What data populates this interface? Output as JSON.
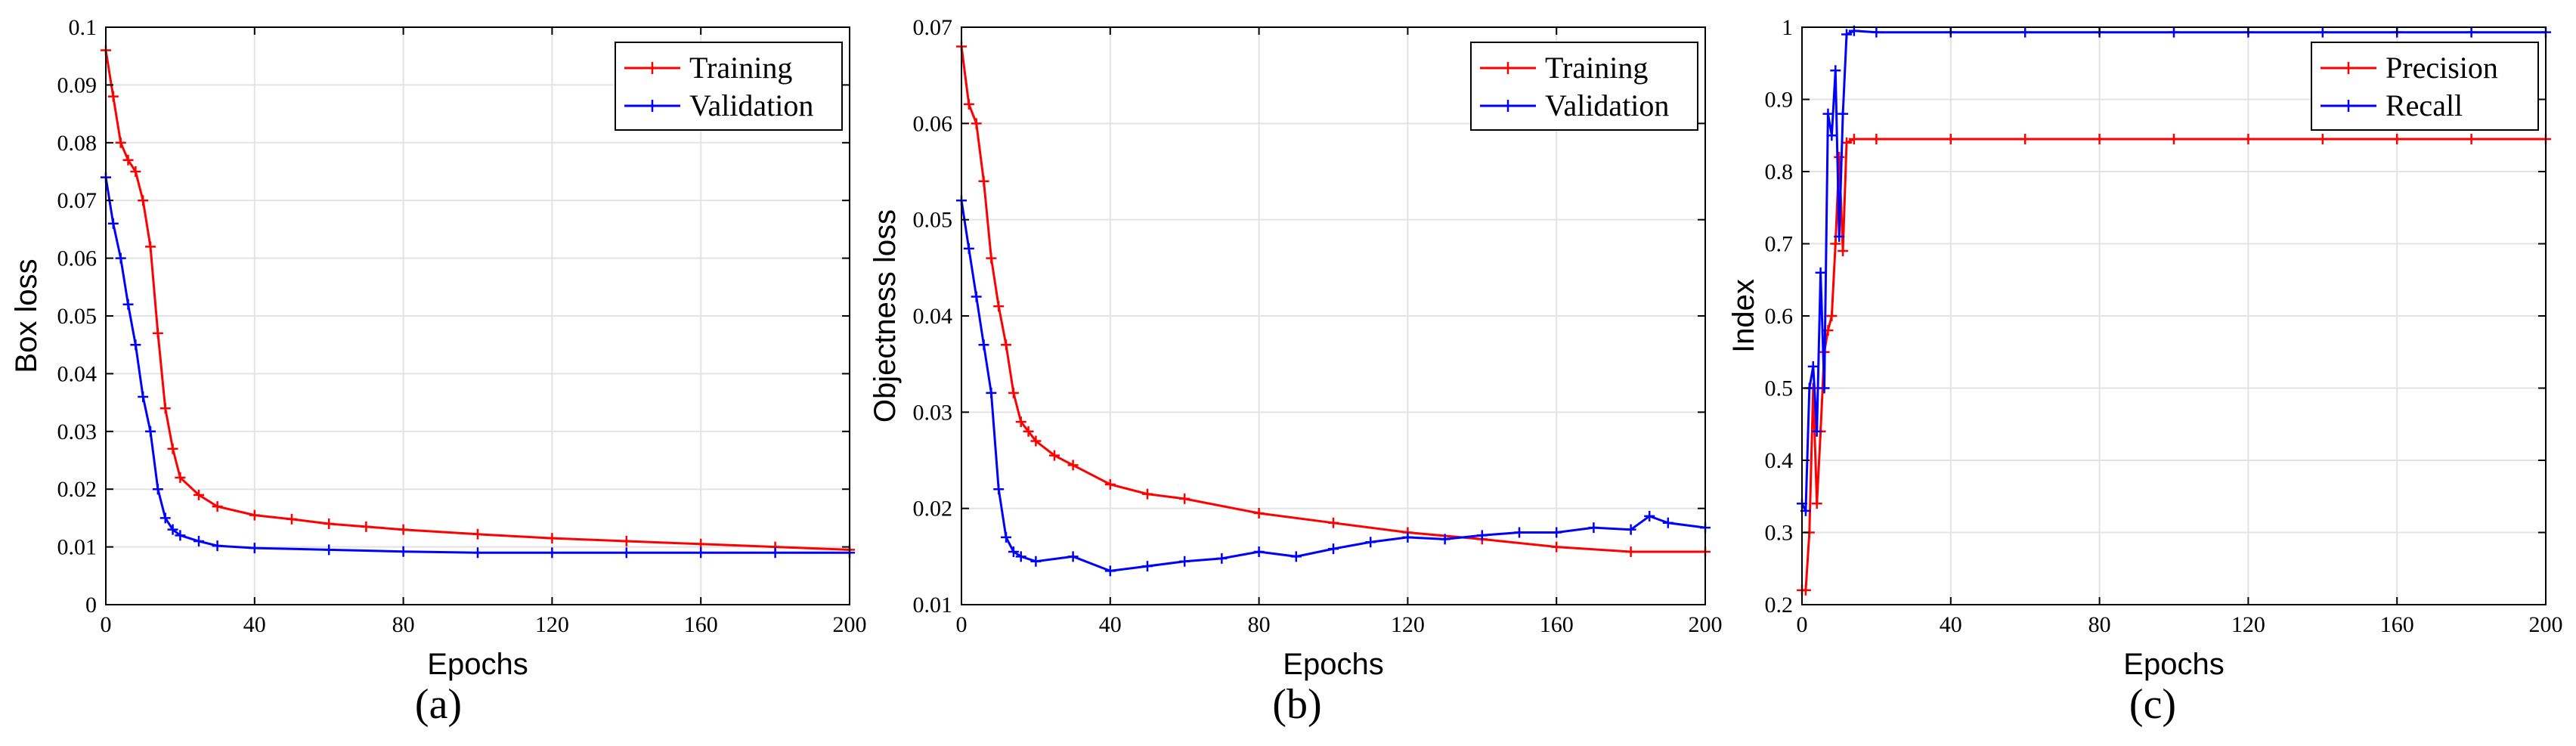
{
  "chart_data": [
    {
      "type": "line",
      "panel_label": "(a)",
      "xlabel": "Epochs",
      "ylabel": "Box loss",
      "xlim": [
        0,
        200
      ],
      "ylim": [
        0,
        0.1
      ],
      "xticks": [
        0,
        40,
        80,
        120,
        160,
        200
      ],
      "xtick_labels": [
        "0",
        "40",
        "80",
        "120",
        "160",
        "200"
      ],
      "yticks": [
        0,
        0.01,
        0.02,
        0.03,
        0.04,
        0.05,
        0.06,
        0.07,
        0.08,
        0.09,
        0.1
      ],
      "ytick_labels": [
        "0",
        "0.01",
        "0.02",
        "0.03",
        "0.04",
        "0.05",
        "0.06",
        "0.07",
        "0.08",
        "0.09",
        "0.1"
      ],
      "grid": true,
      "legend_position": "top-right",
      "series": [
        {
          "name": "Training",
          "color": "#ff0000",
          "x": [
            0,
            2,
            4,
            6,
            8,
            10,
            12,
            14,
            16,
            18,
            20,
            25,
            30,
            40,
            50,
            60,
            70,
            80,
            100,
            120,
            140,
            160,
            180,
            200
          ],
          "values": [
            0.096,
            0.088,
            0.08,
            0.077,
            0.075,
            0.07,
            0.062,
            0.047,
            0.034,
            0.027,
            0.022,
            0.019,
            0.017,
            0.0155,
            0.0148,
            0.014,
            0.0135,
            0.013,
            0.0122,
            0.0115,
            0.011,
            0.0105,
            0.01,
            0.0095
          ]
        },
        {
          "name": "Validation",
          "color": "#0000ff",
          "x": [
            0,
            2,
            4,
            6,
            8,
            10,
            12,
            14,
            16,
            18,
            20,
            25,
            30,
            40,
            60,
            80,
            100,
            120,
            140,
            160,
            180,
            200
          ],
          "values": [
            0.074,
            0.066,
            0.06,
            0.052,
            0.045,
            0.036,
            0.03,
            0.02,
            0.015,
            0.013,
            0.012,
            0.011,
            0.0102,
            0.0098,
            0.0095,
            0.0092,
            0.009,
            0.009,
            0.009,
            0.009,
            0.009,
            0.009
          ]
        }
      ]
    },
    {
      "type": "line",
      "panel_label": "(b)",
      "xlabel": "Epochs",
      "ylabel": "Objectness loss",
      "xlim": [
        0,
        200
      ],
      "ylim": [
        0.01,
        0.07
      ],
      "xticks": [
        0,
        40,
        80,
        120,
        160,
        200
      ],
      "xtick_labels": [
        "0",
        "40",
        "80",
        "120",
        "160",
        "200"
      ],
      "yticks": [
        0.01,
        0.02,
        0.03,
        0.04,
        0.05,
        0.06,
        0.07
      ],
      "ytick_labels": [
        "0.01",
        "0.02",
        "0.03",
        "0.04",
        "0.05",
        "0.06",
        "0.07"
      ],
      "grid": true,
      "legend_position": "top-right",
      "series": [
        {
          "name": "Training",
          "color": "#ff0000",
          "x": [
            0,
            2,
            4,
            6,
            8,
            10,
            12,
            14,
            16,
            18,
            20,
            25,
            30,
            40,
            50,
            60,
            80,
            100,
            120,
            140,
            160,
            180,
            200
          ],
          "values": [
            0.068,
            0.062,
            0.06,
            0.054,
            0.046,
            0.041,
            0.037,
            0.032,
            0.029,
            0.028,
            0.027,
            0.0255,
            0.0245,
            0.0225,
            0.0215,
            0.021,
            0.0195,
            0.0185,
            0.0175,
            0.0168,
            0.016,
            0.0155,
            0.0155
          ]
        },
        {
          "name": "Validation",
          "color": "#0000ff",
          "x": [
            0,
            2,
            4,
            6,
            8,
            10,
            12,
            14,
            16,
            20,
            30,
            40,
            50,
            60,
            70,
            80,
            90,
            100,
            110,
            120,
            130,
            140,
            150,
            160,
            170,
            180,
            185,
            190,
            200
          ],
          "values": [
            0.052,
            0.047,
            0.042,
            0.037,
            0.032,
            0.022,
            0.017,
            0.0155,
            0.015,
            0.0145,
            0.015,
            0.0135,
            0.014,
            0.0145,
            0.0148,
            0.0155,
            0.015,
            0.0158,
            0.0165,
            0.017,
            0.0168,
            0.0172,
            0.0175,
            0.0175,
            0.018,
            0.0178,
            0.0192,
            0.0185,
            0.018
          ]
        }
      ]
    },
    {
      "type": "line",
      "panel_label": "(c)",
      "xlabel": "Epochs",
      "ylabel": "Index",
      "xlim": [
        0,
        200
      ],
      "ylim": [
        0.2,
        1.0
      ],
      "xticks": [
        0,
        40,
        80,
        120,
        160,
        200
      ],
      "xtick_labels": [
        "0",
        "40",
        "80",
        "120",
        "160",
        "200"
      ],
      "yticks": [
        0.2,
        0.3,
        0.4,
        0.5,
        0.6,
        0.7,
        0.8,
        0.9,
        1.0
      ],
      "ytick_labels": [
        "0.2",
        "0.3",
        "0.4",
        "0.5",
        "0.6",
        "0.7",
        "0.8",
        "0.9",
        "1"
      ],
      "grid": true,
      "legend_position": "top-right",
      "series": [
        {
          "name": "Precision",
          "color": "#ff0000",
          "x": [
            0,
            1,
            2,
            3,
            4,
            5,
            6,
            7,
            8,
            9,
            10,
            11,
            12,
            14,
            20,
            40,
            60,
            80,
            100,
            120,
            140,
            160,
            180,
            200
          ],
          "values": [
            0.22,
            0.22,
            0.3,
            0.5,
            0.34,
            0.44,
            0.55,
            0.58,
            0.6,
            0.7,
            0.82,
            0.69,
            0.84,
            0.845,
            0.845,
            0.845,
            0.845,
            0.845,
            0.845,
            0.845,
            0.845,
            0.845,
            0.845,
            0.845
          ]
        },
        {
          "name": "Recall",
          "color": "#0000ff",
          "x": [
            0,
            1,
            2,
            3,
            4,
            5,
            6,
            7,
            8,
            9,
            10,
            11,
            12,
            14,
            20,
            40,
            60,
            80,
            100,
            120,
            140,
            160,
            180,
            200
          ],
          "values": [
            0.34,
            0.33,
            0.5,
            0.53,
            0.44,
            0.66,
            0.5,
            0.88,
            0.85,
            0.94,
            0.71,
            0.88,
            0.99,
            0.995,
            0.993,
            0.993,
            0.993,
            0.993,
            0.993,
            0.993,
            0.993,
            0.993,
            0.993,
            0.993
          ]
        }
      ]
    }
  ]
}
